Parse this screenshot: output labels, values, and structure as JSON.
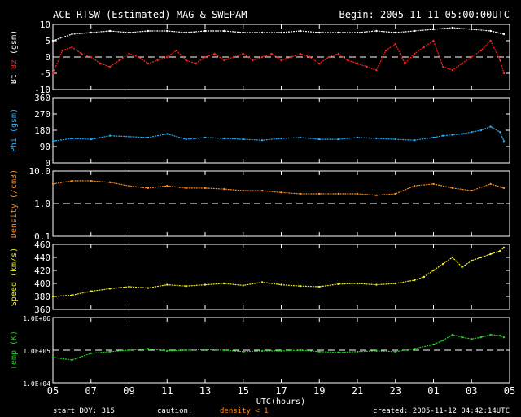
{
  "header": {
    "title": "ACE RTSW (Estimated) MAG & SWEPAM",
    "begin": "Begin: 2005-11-11 05:00:00UTC"
  },
  "footer": {
    "start_doy": "start DOY: 315",
    "caution": "caution:",
    "caution_note": "density < 1",
    "created": "created: 2005-11-12 04:42:14UTC"
  },
  "x_axis": {
    "label": "UTC(hours)",
    "ticks": [
      "05",
      "07",
      "09",
      "11",
      "13",
      "15",
      "17",
      "19",
      "21",
      "23",
      "01",
      "03",
      "05"
    ]
  },
  "colors": {
    "background": "#000000",
    "frame": "#ffffff",
    "bt": "#ffffff",
    "bz": "#ff2020",
    "phi": "#20b0ff",
    "density": "#ff8c1a",
    "speed": "#f0f020",
    "temp": "#20d020"
  },
  "chart_data": [
    {
      "type": "line",
      "panel": "mag",
      "ylabel_parts": [
        "Bt",
        "Bz",
        "(gsm)"
      ],
      "ylim": [
        -10,
        10
      ],
      "yticks": [
        "10",
        "5",
        "0",
        "-5",
        "-10"
      ],
      "ytick_values": [
        10,
        5,
        0,
        -5,
        -10
      ],
      "reference_line": 0,
      "x_unit": "hours since 05:00 UTC 2005-11-11",
      "series": [
        {
          "name": "Bt",
          "x": [
            0,
            1,
            2,
            3,
            4,
            5,
            6,
            7,
            8,
            9,
            10,
            11,
            12,
            13,
            14,
            15,
            16,
            17,
            18,
            19,
            20,
            21,
            22,
            23,
            23.7
          ],
          "y": [
            5,
            7,
            7.5,
            8,
            7.5,
            8,
            8,
            7.5,
            8,
            8,
            7.5,
            7.5,
            7.5,
            8,
            7.5,
            7.5,
            7.5,
            8,
            7.5,
            8,
            8.5,
            9,
            8.5,
            8,
            7
          ]
        },
        {
          "name": "Bz",
          "x": [
            0,
            0.5,
            1,
            1.5,
            2,
            2.5,
            3,
            3.5,
            4,
            4.5,
            5,
            5.5,
            6,
            6.5,
            7,
            7.5,
            8,
            8.5,
            9,
            9.5,
            10,
            10.5,
            11,
            11.5,
            12,
            12.5,
            13,
            13.5,
            14,
            14.5,
            15,
            15.5,
            16,
            16.5,
            17,
            17.5,
            18,
            18.5,
            19,
            19.5,
            20,
            20.5,
            21,
            21.5,
            22,
            22.5,
            23,
            23.5,
            23.7
          ],
          "y": [
            -5,
            2,
            3,
            1,
            0,
            -2,
            -3,
            -1,
            1,
            0,
            -2,
            -1,
            0,
            2,
            -1,
            -2,
            0,
            1,
            -1,
            0,
            1,
            -1,
            0,
            1,
            -1,
            0,
            1,
            0,
            -2,
            0,
            1,
            -1,
            -2,
            -3,
            -4,
            2,
            4,
            -2,
            1,
            3,
            5,
            -3,
            -4,
            -2,
            0,
            2,
            5,
            -1,
            -5
          ]
        }
      ]
    },
    {
      "type": "scatter",
      "panel": "phi",
      "ylabel_parts": [
        "Phi",
        "(gsm)"
      ],
      "ylim": [
        0,
        360
      ],
      "yticks": [
        "360",
        "270",
        "180",
        "90",
        "0"
      ],
      "ytick_values": [
        360,
        270,
        180,
        90,
        0
      ],
      "series": [
        {
          "name": "Phi",
          "x": [
            0,
            1,
            2,
            3,
            4,
            5,
            6,
            7,
            8,
            9,
            10,
            11,
            12,
            13,
            14,
            15,
            16,
            17,
            18,
            19,
            20,
            20.5,
            21,
            21.5,
            22,
            22.5,
            23,
            23.5,
            23.7
          ],
          "y": [
            120,
            135,
            130,
            150,
            145,
            140,
            160,
            130,
            140,
            135,
            130,
            125,
            135,
            140,
            130,
            130,
            140,
            135,
            130,
            125,
            140,
            150,
            155,
            160,
            170,
            180,
            200,
            170,
            120
          ]
        }
      ]
    },
    {
      "type": "line",
      "panel": "density",
      "ylabel_parts": [
        "Density",
        "(/cm3)"
      ],
      "yscale": "log",
      "ylim": [
        0.1,
        10
      ],
      "yticks": [
        "10.0",
        "1.0",
        "0.1"
      ],
      "ytick_values": [
        10,
        1,
        0.1
      ],
      "reference_line": 1,
      "series": [
        {
          "name": "Density",
          "x": [
            0,
            1,
            2,
            3,
            4,
            5,
            6,
            7,
            8,
            9,
            10,
            11,
            12,
            13,
            14,
            15,
            16,
            17,
            18,
            19,
            20,
            21,
            22,
            23,
            23.7
          ],
          "y": [
            4,
            5,
            5,
            4.5,
            3.5,
            3,
            3.5,
            3,
            3,
            2.8,
            2.5,
            2.5,
            2.2,
            2,
            2,
            2,
            2,
            1.8,
            2,
            3.5,
            4,
            3,
            2.5,
            4,
            3
          ]
        }
      ]
    },
    {
      "type": "line",
      "panel": "speed",
      "ylabel_parts": [
        "Speed",
        "(km/s)"
      ],
      "ylim": [
        360,
        460
      ],
      "yticks": [
        "460",
        "440",
        "420",
        "400",
        "380",
        "360"
      ],
      "ytick_values": [
        460,
        440,
        420,
        400,
        380,
        360
      ],
      "series": [
        {
          "name": "Speed",
          "x": [
            0,
            1,
            2,
            3,
            4,
            5,
            6,
            7,
            8,
            9,
            10,
            11,
            12,
            13,
            14,
            15,
            16,
            17,
            18,
            19,
            19.5,
            20,
            20.5,
            21,
            21.5,
            22,
            22.5,
            23,
            23.5,
            23.7
          ],
          "y": [
            380,
            382,
            388,
            392,
            395,
            393,
            398,
            396,
            398,
            400,
            397,
            402,
            398,
            396,
            395,
            399,
            400,
            398,
            400,
            405,
            410,
            420,
            430,
            440,
            425,
            435,
            440,
            445,
            450,
            455
          ]
        }
      ]
    },
    {
      "type": "line",
      "panel": "temp",
      "ylabel_parts": [
        "Temp",
        "(K)"
      ],
      "yscale": "log",
      "ylim": [
        10000,
        1000000
      ],
      "yticks": [
        "1.0E+06",
        "1.0E+05",
        "1.0E+04"
      ],
      "ytick_values": [
        1000000,
        100000,
        10000
      ],
      "reference_line": 100000,
      "series": [
        {
          "name": "Temp",
          "x": [
            0,
            1,
            2,
            3,
            4,
            5,
            6,
            7,
            8,
            9,
            10,
            11,
            12,
            13,
            14,
            15,
            16,
            17,
            18,
            19,
            20,
            20.5,
            21,
            21.5,
            22,
            22.5,
            23,
            23.5,
            23.7
          ],
          "y": [
            60000,
            50000,
            80000,
            90000,
            100000,
            110000,
            95000,
            100000,
            105000,
            100000,
            90000,
            95000,
            95000,
            100000,
            90000,
            85000,
            90000,
            95000,
            90000,
            110000,
            150000,
            200000,
            300000,
            250000,
            220000,
            250000,
            300000,
            280000,
            250000
          ]
        }
      ]
    }
  ]
}
